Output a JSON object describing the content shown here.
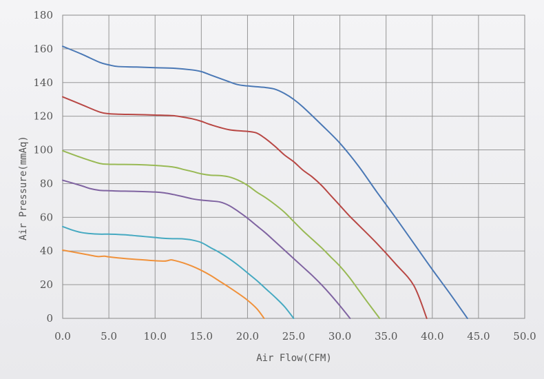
{
  "chart_data": {
    "type": "line",
    "title": "",
    "xlabel": "Air Flow(CFM)",
    "ylabel": "Air Pressure(mmAq)",
    "xlim": [
      0,
      50
    ],
    "ylim": [
      0,
      180
    ],
    "x_ticks": [
      "0.0",
      "5.0",
      "10.0",
      "15.0",
      "20.0",
      "25.0",
      "30.0",
      "35.0",
      "40.0",
      "45.0",
      "50.0"
    ],
    "y_ticks": [
      "0",
      "20",
      "40",
      "60",
      "80",
      "100",
      "120",
      "140",
      "160",
      "180"
    ],
    "grid": true,
    "legend": "none",
    "series": [
      {
        "color": "#4a78b5",
        "points": [
          [
            0,
            161.5
          ],
          [
            2,
            157
          ],
          [
            4,
            152
          ],
          [
            5,
            150.5
          ],
          [
            6,
            149.5
          ],
          [
            8,
            149.2
          ],
          [
            10,
            148.8
          ],
          [
            12,
            148.5
          ],
          [
            14,
            147.5
          ],
          [
            15,
            146.5
          ],
          [
            16,
            144.5
          ],
          [
            18,
            140.5
          ],
          [
            19,
            138.7
          ],
          [
            20,
            138
          ],
          [
            21,
            137.5
          ],
          [
            22,
            137
          ],
          [
            23,
            136
          ],
          [
            24,
            133.5
          ],
          [
            25,
            130
          ],
          [
            26,
            125.5
          ],
          [
            28,
            115
          ],
          [
            30,
            104
          ],
          [
            32,
            90.5
          ],
          [
            34,
            75
          ],
          [
            36,
            60
          ],
          [
            38,
            44.5
          ],
          [
            40,
            29
          ],
          [
            42,
            14
          ],
          [
            43.8,
            0
          ]
        ]
      },
      {
        "color": "#b84744",
        "points": [
          [
            0,
            131.5
          ],
          [
            2,
            127
          ],
          [
            4,
            122.5
          ],
          [
            5,
            121.5
          ],
          [
            6,
            121.2
          ],
          [
            8,
            121
          ],
          [
            10,
            120.7
          ],
          [
            12,
            120.3
          ],
          [
            13,
            119.5
          ],
          [
            14,
            118.5
          ],
          [
            15,
            117
          ],
          [
            16,
            115
          ],
          [
            18,
            112
          ],
          [
            20,
            111
          ],
          [
            21,
            110
          ],
          [
            22,
            106.5
          ],
          [
            23,
            102
          ],
          [
            24,
            97
          ],
          [
            25,
            93
          ],
          [
            26,
            88
          ],
          [
            27,
            84
          ],
          [
            28,
            79
          ],
          [
            29,
            73
          ],
          [
            30,
            67
          ],
          [
            31,
            61
          ],
          [
            32,
            55.5
          ],
          [
            34,
            44.5
          ],
          [
            36,
            32.5
          ],
          [
            38,
            19.5
          ],
          [
            39.4,
            0
          ]
        ]
      },
      {
        "color": "#98b954",
        "points": [
          [
            0,
            99.5
          ],
          [
            2,
            95.5
          ],
          [
            4,
            92
          ],
          [
            5,
            91.5
          ],
          [
            6,
            91.4
          ],
          [
            8,
            91.3
          ],
          [
            10,
            90.8
          ],
          [
            12,
            89.8
          ],
          [
            13,
            88.5
          ],
          [
            14,
            87.2
          ],
          [
            15,
            85.8
          ],
          [
            16,
            85
          ],
          [
            17,
            84.8
          ],
          [
            18,
            84
          ],
          [
            19,
            82
          ],
          [
            20,
            79
          ],
          [
            21,
            75
          ],
          [
            22,
            71.5
          ],
          [
            23,
            67.5
          ],
          [
            24,
            63
          ],
          [
            25,
            57.5
          ],
          [
            26,
            52
          ],
          [
            27,
            47
          ],
          [
            28,
            42
          ],
          [
            29,
            36.5
          ],
          [
            30,
            31
          ],
          [
            31,
            24.5
          ],
          [
            32,
            17
          ],
          [
            33,
            9.5
          ],
          [
            34.3,
            0
          ]
        ]
      },
      {
        "color": "#7f63a1",
        "points": [
          [
            0,
            82
          ],
          [
            2,
            78.8
          ],
          [
            3,
            77
          ],
          [
            4,
            76
          ],
          [
            5,
            75.8
          ],
          [
            6,
            75.6
          ],
          [
            8,
            75.4
          ],
          [
            10,
            75
          ],
          [
            11,
            74.5
          ],
          [
            12,
            73.5
          ],
          [
            13,
            72.3
          ],
          [
            14,
            71
          ],
          [
            15,
            70.2
          ],
          [
            16,
            69.7
          ],
          [
            17,
            69.1
          ],
          [
            18,
            67
          ],
          [
            19,
            63.5
          ],
          [
            20,
            59.5
          ],
          [
            21,
            55
          ],
          [
            22,
            50.5
          ],
          [
            23,
            45.5
          ],
          [
            24,
            40.5
          ],
          [
            25,
            35.5
          ],
          [
            26,
            30.5
          ],
          [
            27,
            25.5
          ],
          [
            28,
            20
          ],
          [
            29,
            14
          ],
          [
            30,
            7.5
          ],
          [
            31.1,
            0
          ]
        ]
      },
      {
        "color": "#45a9c1",
        "points": [
          [
            0,
            54.5
          ],
          [
            1,
            52.5
          ],
          [
            2,
            51
          ],
          [
            3,
            50.3
          ],
          [
            4,
            50
          ],
          [
            5,
            50
          ],
          [
            6,
            49.8
          ],
          [
            7,
            49.5
          ],
          [
            8,
            49
          ],
          [
            9,
            48.5
          ],
          [
            10,
            48
          ],
          [
            11,
            47.5
          ],
          [
            12,
            47.3
          ],
          [
            13,
            47.2
          ],
          [
            14,
            46.5
          ],
          [
            15,
            45
          ],
          [
            16,
            42
          ],
          [
            17,
            39
          ],
          [
            18,
            35.5
          ],
          [
            19,
            31.5
          ],
          [
            20,
            27
          ],
          [
            21,
            22.5
          ],
          [
            22,
            17.5
          ],
          [
            23,
            12.5
          ],
          [
            24,
            7
          ],
          [
            25,
            0
          ]
        ]
      },
      {
        "color": "#f0913a",
        "points": [
          [
            0,
            40.5
          ],
          [
            1,
            39.5
          ],
          [
            2,
            38.5
          ],
          [
            3,
            37.5
          ],
          [
            3.8,
            36.7
          ],
          [
            4.5,
            36.9
          ],
          [
            5,
            36.5
          ],
          [
            6,
            35.9
          ],
          [
            7,
            35.4
          ],
          [
            8,
            35
          ],
          [
            9,
            34.6
          ],
          [
            10,
            34.2
          ],
          [
            11,
            34
          ],
          [
            11.3,
            34.2
          ],
          [
            11.7,
            34.7
          ],
          [
            12,
            34.5
          ],
          [
            13,
            33
          ],
          [
            14,
            31
          ],
          [
            15,
            28.5
          ],
          [
            16,
            25.5
          ],
          [
            17,
            22
          ],
          [
            18,
            18.5
          ],
          [
            19,
            14.8
          ],
          [
            20,
            10.8
          ],
          [
            21,
            5.8
          ],
          [
            21.8,
            0
          ]
        ]
      }
    ]
  }
}
